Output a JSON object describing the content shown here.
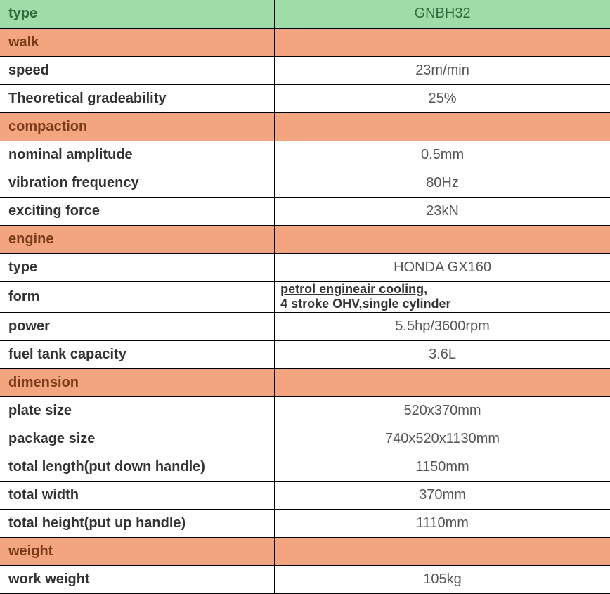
{
  "table": {
    "header_bg": "#9fdda8",
    "section_bg": "#f2a57e",
    "data_bg": "#ffffff",
    "border_color": "#000000",
    "rows": [
      {
        "kind": "header",
        "label": "type",
        "value": "GNBH32"
      },
      {
        "kind": "section",
        "label": "walk",
        "value": ""
      },
      {
        "kind": "data",
        "label": "speed",
        "value": "23m/min"
      },
      {
        "kind": "data",
        "label": "Theoretical gradeability",
        "value": "25%"
      },
      {
        "kind": "section",
        "label": "compaction",
        "value": ""
      },
      {
        "kind": "data",
        "label": "nominal amplitude",
        "value": "0.5mm"
      },
      {
        "kind": "data",
        "label": "vibration frequency",
        "value": "80Hz"
      },
      {
        "kind": "data",
        "label": "exciting force",
        "value": "23kN"
      },
      {
        "kind": "section",
        "label": "engine",
        "value": ""
      },
      {
        "kind": "data",
        "label": "type",
        "value": "HONDA  GX160"
      },
      {
        "kind": "data",
        "label": "form",
        "value": "petrol engineair cooling,\n4 stroke OHV,single cylinder",
        "multiline": true
      },
      {
        "kind": "data",
        "label": "power",
        "value": "5.5hp/3600rpm"
      },
      {
        "kind": "data",
        "label": "fuel tank capacity",
        "value": "3.6L"
      },
      {
        "kind": "section",
        "label": "dimension",
        "value": ""
      },
      {
        "kind": "data",
        "label": "plate size",
        "value": "520x370mm"
      },
      {
        "kind": "data",
        "label": "package size",
        "value": "740x520x1130mm"
      },
      {
        "kind": "data",
        "label": "total length(put down handle)",
        "value": "1150mm"
      },
      {
        "kind": "data",
        "label": "total width",
        "value": "370mm"
      },
      {
        "kind": "data",
        "label": "total height(put up handle)",
        "value": "1110mm"
      },
      {
        "kind": "section",
        "label": "weight",
        "value": ""
      },
      {
        "kind": "data",
        "label": "work weight",
        "value": "105kg"
      }
    ]
  }
}
